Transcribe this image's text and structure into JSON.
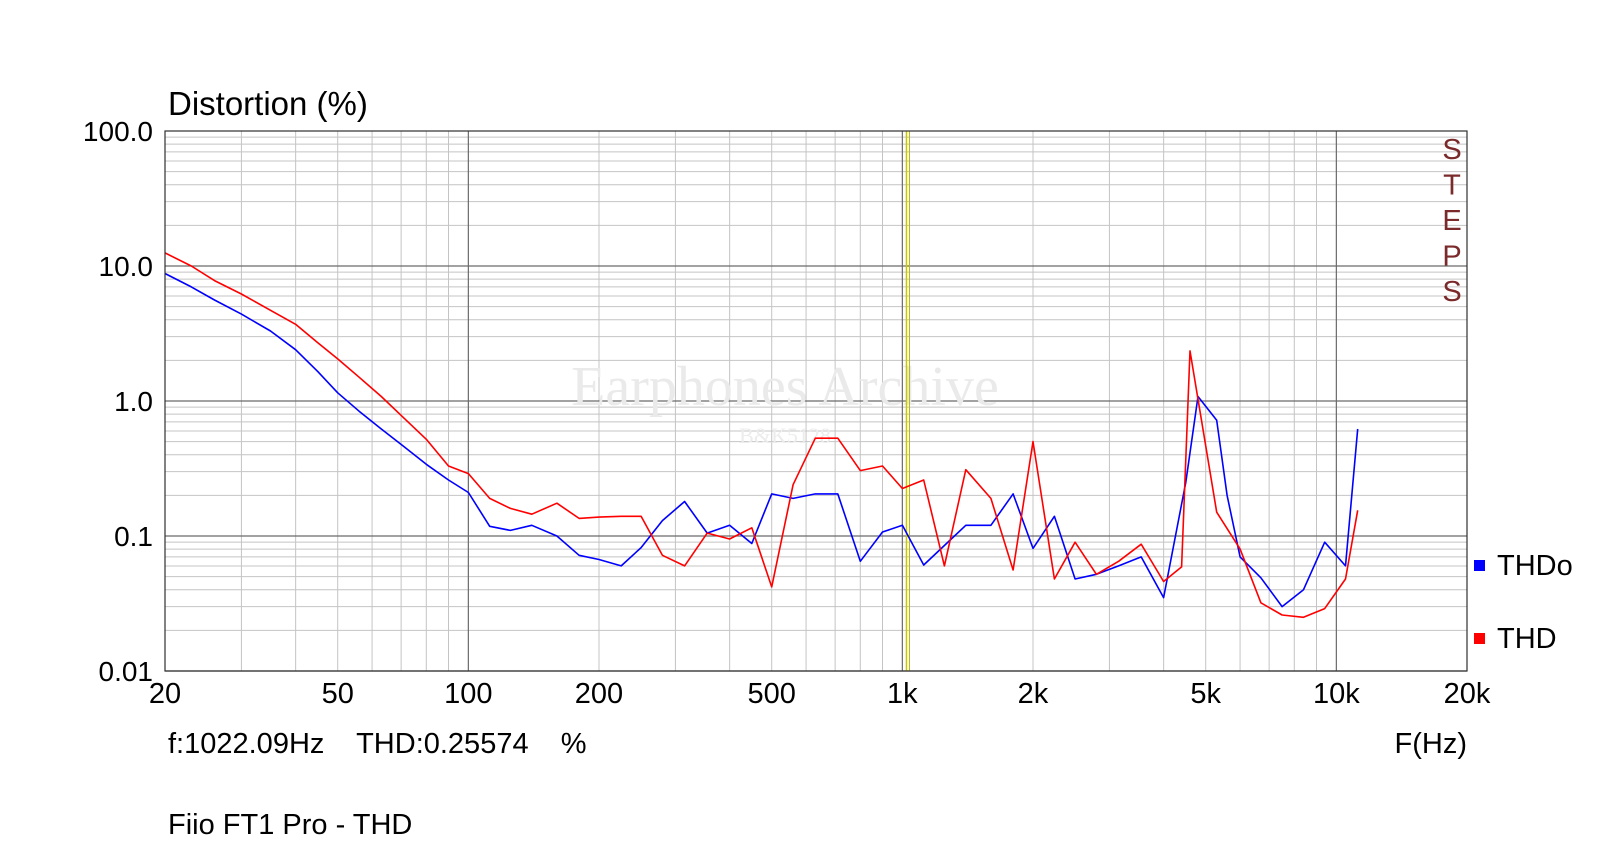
{
  "chart_data": {
    "type": "line",
    "title": "Distortion (%)",
    "xlabel": "F(Hz)",
    "x_scale": "log",
    "y_scale": "log",
    "xlim": [
      20,
      20000
    ],
    "ylim": [
      0.01,
      100
    ],
    "x_ticks": [
      {
        "value": 20,
        "label": "20"
      },
      {
        "value": 50,
        "label": "50"
      },
      {
        "value": 100,
        "label": "100"
      },
      {
        "value": 200,
        "label": "200"
      },
      {
        "value": 500,
        "label": "500"
      },
      {
        "value": 1000,
        "label": "1k"
      },
      {
        "value": 2000,
        "label": "2k"
      },
      {
        "value": 5000,
        "label": "5k"
      },
      {
        "value": 10000,
        "label": "10k"
      },
      {
        "value": 20000,
        "label": "20k"
      }
    ],
    "y_ticks": [
      {
        "value": 100,
        "label": "100.0"
      },
      {
        "value": 10,
        "label": "10.0"
      },
      {
        "value": 1,
        "label": "1.0"
      },
      {
        "value": 0.1,
        "label": "0.1"
      },
      {
        "value": 0.01,
        "label": "0.01"
      }
    ],
    "grid": true,
    "legend_position": "right",
    "cursor": {
      "frequency": 1022.09,
      "readout": "f:1022.09Hz    THD:0.25574    %",
      "color": "#c8c800"
    },
    "side_label": "STEPS",
    "watermark": "Earphones Archive",
    "watermark_sub": "B&K5128",
    "footer": "Fiio FT1 Pro - THD",
    "series": [
      {
        "name": "THDo",
        "color": "#0000ff",
        "points": [
          [
            20,
            8.8
          ],
          [
            23,
            7.0
          ],
          [
            26,
            5.6
          ],
          [
            30,
            4.4
          ],
          [
            35,
            3.3
          ],
          [
            40,
            2.4
          ],
          [
            45,
            1.65
          ],
          [
            50,
            1.15
          ],
          [
            56,
            0.84
          ],
          [
            63,
            0.62
          ],
          [
            71,
            0.46
          ],
          [
            80,
            0.34
          ],
          [
            90,
            0.26
          ],
          [
            100,
            0.21
          ],
          [
            112,
            0.118
          ],
          [
            125,
            0.11
          ],
          [
            140,
            0.12
          ],
          [
            160,
            0.1
          ],
          [
            180,
            0.072
          ],
          [
            200,
            0.067
          ],
          [
            225,
            0.06
          ],
          [
            250,
            0.082
          ],
          [
            280,
            0.13
          ],
          [
            315,
            0.18
          ],
          [
            355,
            0.105
          ],
          [
            400,
            0.12
          ],
          [
            450,
            0.088
          ],
          [
            500,
            0.205
          ],
          [
            560,
            0.19
          ],
          [
            630,
            0.205
          ],
          [
            710,
            0.205
          ],
          [
            800,
            0.065
          ],
          [
            900,
            0.107
          ],
          [
            1000,
            0.12
          ],
          [
            1120,
            0.061
          ],
          [
            1250,
            0.085
          ],
          [
            1400,
            0.12
          ],
          [
            1600,
            0.12
          ],
          [
            1800,
            0.205
          ],
          [
            2000,
            0.081
          ],
          [
            2240,
            0.14
          ],
          [
            2500,
            0.048
          ],
          [
            2800,
            0.052
          ],
          [
            3150,
            0.06
          ],
          [
            3550,
            0.07
          ],
          [
            4000,
            0.035
          ],
          [
            4500,
            0.25
          ],
          [
            4800,
            1.08
          ],
          [
            5300,
            0.72
          ],
          [
            5600,
            0.2
          ],
          [
            6000,
            0.07
          ],
          [
            6700,
            0.049
          ],
          [
            7500,
            0.03
          ],
          [
            8400,
            0.04
          ],
          [
            9400,
            0.09
          ],
          [
            10500,
            0.06
          ],
          [
            11200,
            0.62
          ]
        ]
      },
      {
        "name": "THD",
        "color": "#ff0000",
        "points": [
          [
            20,
            12.5
          ],
          [
            23,
            10.0
          ],
          [
            26,
            7.8
          ],
          [
            30,
            6.2
          ],
          [
            35,
            4.7
          ],
          [
            40,
            3.7
          ],
          [
            45,
            2.7
          ],
          [
            50,
            2.05
          ],
          [
            56,
            1.5
          ],
          [
            63,
            1.08
          ],
          [
            71,
            0.75
          ],
          [
            80,
            0.52
          ],
          [
            90,
            0.33
          ],
          [
            100,
            0.29
          ],
          [
            112,
            0.19
          ],
          [
            125,
            0.16
          ],
          [
            140,
            0.145
          ],
          [
            160,
            0.175
          ],
          [
            180,
            0.135
          ],
          [
            200,
            0.138
          ],
          [
            225,
            0.14
          ],
          [
            250,
            0.14
          ],
          [
            280,
            0.072
          ],
          [
            315,
            0.06
          ],
          [
            355,
            0.105
          ],
          [
            400,
            0.095
          ],
          [
            450,
            0.115
          ],
          [
            500,
            0.042
          ],
          [
            560,
            0.24
          ],
          [
            630,
            0.53
          ],
          [
            710,
            0.53
          ],
          [
            800,
            0.305
          ],
          [
            900,
            0.33
          ],
          [
            1000,
            0.225
          ],
          [
            1120,
            0.26
          ],
          [
            1250,
            0.06
          ],
          [
            1400,
            0.31
          ],
          [
            1600,
            0.19
          ],
          [
            1800,
            0.056
          ],
          [
            2000,
            0.5
          ],
          [
            2240,
            0.048
          ],
          [
            2500,
            0.09
          ],
          [
            2800,
            0.052
          ],
          [
            3150,
            0.065
          ],
          [
            3550,
            0.087
          ],
          [
            4000,
            0.046
          ],
          [
            4400,
            0.059
          ],
          [
            4600,
            2.35
          ],
          [
            5300,
            0.15
          ],
          [
            6000,
            0.08
          ],
          [
            6700,
            0.032
          ],
          [
            7500,
            0.026
          ],
          [
            8400,
            0.025
          ],
          [
            9400,
            0.029
          ],
          [
            10500,
            0.048
          ],
          [
            11200,
            0.155
          ]
        ]
      }
    ]
  }
}
